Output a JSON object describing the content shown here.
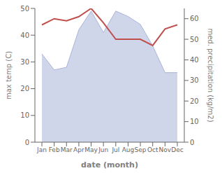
{
  "chart_data": {
    "type": "line",
    "categories": [
      "Jan",
      "Feb",
      "Mar",
      "Apr",
      "May",
      "Jun",
      "Jul",
      "Aug",
      "Sep",
      "Oct",
      "Nov",
      "Dec"
    ],
    "series": [
      {
        "type": "area",
        "color": "#aab4d8",
        "values": [
          33,
          27,
          28,
          42,
          49,
          41,
          49,
          47,
          44,
          36,
          26,
          26
        ]
      },
      {
        "type": "line",
        "color": "#c0504d",
        "values": [
          57,
          60,
          59,
          61,
          65,
          58,
          50,
          50,
          50,
          47,
          55,
          57
        ],
        "axis": "y2"
      }
    ],
    "xlabel": "date (month)",
    "ylabel": "max temp (C)",
    "y2label": "med. precipitation (kg/m2)",
    "ylim": [
      0,
      50
    ],
    "yticks": [
      0,
      10,
      20,
      30,
      40,
      50
    ],
    "y2lim": [
      0,
      65
    ],
    "y2ticks": [
      0,
      10,
      20,
      30,
      40,
      50,
      60
    ],
    "grid": false
  }
}
